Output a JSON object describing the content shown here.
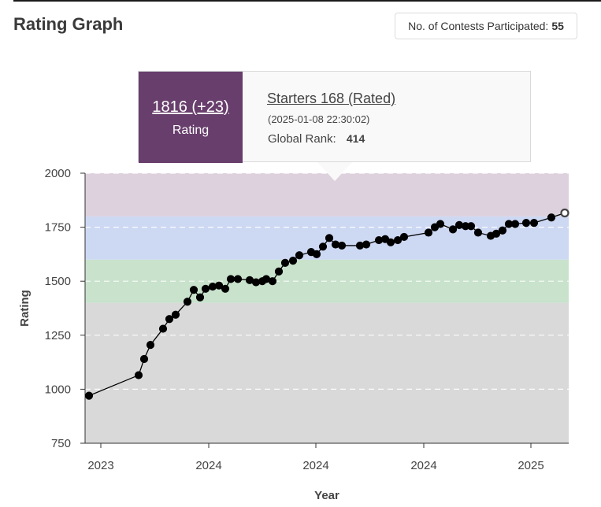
{
  "header": {
    "title": "Rating Graph",
    "contests_label": "No. of Contests Participated:",
    "contests_count": "55"
  },
  "tooltip": {
    "rating": "1816 (+23)",
    "rating_label": "Rating",
    "contest_name": "Starters 168 (Rated)",
    "datetime": "(2025-01-08 22:30:02)",
    "rank_label": "Global Rank:",
    "rank_value": "414"
  },
  "chart_data": {
    "type": "line",
    "xlabel": "Year",
    "ylabel": "Rating",
    "ylim": [
      750,
      2000
    ],
    "yticks": [
      750,
      1000,
      1250,
      1500,
      1750,
      2000
    ],
    "xticks": [
      "2023",
      "2024",
      "2024",
      "2024",
      "2025"
    ],
    "grid": "horizontal dashed",
    "bands": [
      {
        "from": 750,
        "to": 1400,
        "color": "#d9d9d9"
      },
      {
        "from": 1400,
        "to": 1600,
        "color": "#c8e2cc"
      },
      {
        "from": 1600,
        "to": 1800,
        "color": "#cdd8f3"
      },
      {
        "from": 1800,
        "to": 2000,
        "color": "#ddd1de"
      }
    ],
    "line_color": "#000000",
    "highlight_color": "#ffffff",
    "series": [
      {
        "values": [
          970,
          1065,
          1140,
          1205,
          1280,
          1325,
          1345,
          1405,
          1460,
          1425,
          1465,
          1475,
          1480,
          1465,
          1510,
          1510,
          1505,
          1495,
          1500,
          1510,
          1500,
          1545,
          1585,
          1595,
          1620,
          1635,
          1625,
          1660,
          1700,
          1670,
          1665,
          1665,
          1670,
          1690,
          1695,
          1680,
          1690,
          1705,
          1725,
          1750,
          1765,
          1740,
          1760,
          1755,
          1755,
          1725,
          1710,
          1720,
          1735,
          1765,
          1765,
          1770,
          1770,
          1795,
          1816
        ]
      }
    ]
  }
}
